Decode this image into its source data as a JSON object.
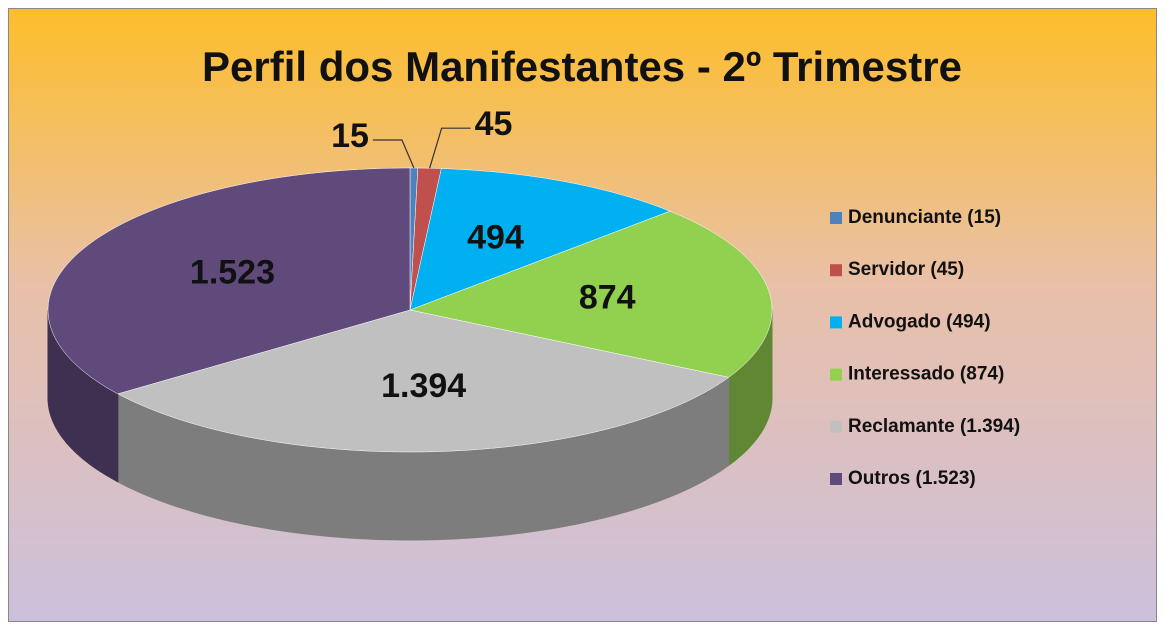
{
  "chart_data": {
    "type": "pie",
    "title": "Perfil dos Manifestantes - 2º Trimestre",
    "categories": [
      "Denunciante (15)",
      "Servidor (45)",
      "Advogado (494)",
      "Interessado (874)",
      "Reclamante (1.394)",
      "Outros (1.523)"
    ],
    "values": [
      15,
      45,
      494,
      874,
      1394,
      1523
    ],
    "value_labels": [
      "15",
      "45",
      "494",
      "874",
      "1.394",
      "1.523"
    ],
    "colors": [
      "#4f81bd",
      "#c0504d",
      "#00b0f0",
      "#92d050",
      "#c0c0c0",
      "#604a7b"
    ],
    "legend": "right"
  }
}
